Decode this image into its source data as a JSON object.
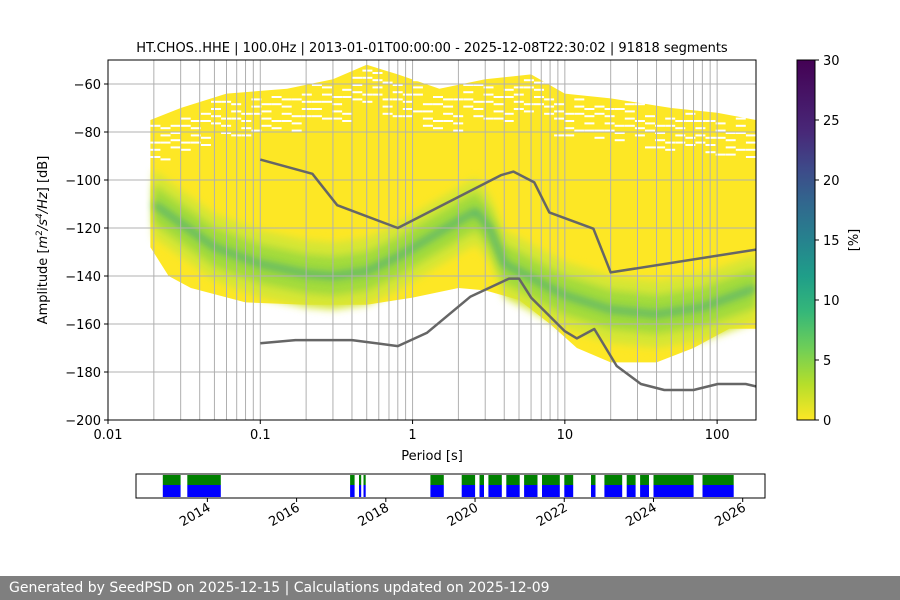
{
  "footer": {
    "text": "Generated by SeedPSD on 2025-12-15 | Calculations updated on 2025-12-09"
  },
  "chart_data": {
    "type": "heatmap",
    "title": "HT.CHOS..HHE | 100.0Hz | 2013-01-01T00:00:00 - 2025-12-08T22:30:02 | 91818 segments",
    "xlabel": "Period [s]",
    "ylabel": "Amplitude [m²/s⁴/Hz] [dB]",
    "xscale": "log",
    "xlim": [
      0.01,
      180
    ],
    "ylim": [
      -200,
      -50
    ],
    "xticks": [
      0.01,
      0.1,
      1,
      10,
      100
    ],
    "xtick_labels": [
      "0.01",
      "0.1",
      "1",
      "10",
      "100"
    ],
    "yticks": [
      -200,
      -180,
      -160,
      -140,
      -120,
      -100,
      -80,
      -60
    ],
    "ytick_labels": [
      "−200",
      "−180",
      "−160",
      "−140",
      "−120",
      "−100",
      "−80",
      "−60"
    ],
    "grid": true,
    "colorbar": {
      "label": "[%]",
      "range": [
        0,
        30
      ],
      "ticks": [
        0,
        5,
        10,
        15,
        20,
        25,
        30
      ],
      "tick_labels": [
        "0",
        "5",
        "10",
        "15",
        "20",
        "25",
        "30"
      ],
      "colormap": "viridis_r"
    },
    "mode_curve": {
      "name": "PSD mode",
      "points": [
        [
          0.02,
          -110
        ],
        [
          0.05,
          -128
        ],
        [
          0.1,
          -135
        ],
        [
          0.2,
          -139
        ],
        [
          0.3,
          -140
        ],
        [
          0.5,
          -138
        ],
        [
          0.8,
          -132
        ],
        [
          1.3,
          -124
        ],
        [
          2.0,
          -117
        ],
        [
          2.6,
          -113
        ],
        [
          3.2,
          -120
        ],
        [
          4.0,
          -135
        ],
        [
          5.0,
          -138
        ],
        [
          7.0,
          -143
        ],
        [
          10.0,
          -148
        ],
        [
          20.0,
          -154
        ],
        [
          40.0,
          -156
        ],
        [
          80.0,
          -153
        ],
        [
          180.0,
          -145
        ]
      ]
    },
    "series": [
      {
        "name": "New High Noise Model",
        "color": "#666666",
        "points": [
          [
            0.1,
            -91.5
          ],
          [
            0.22,
            -97.4
          ],
          [
            0.32,
            -110.5
          ],
          [
            0.8,
            -120.0
          ],
          [
            3.8,
            -98.0
          ],
          [
            4.6,
            -96.5
          ],
          [
            6.3,
            -101.0
          ],
          [
            7.9,
            -113.5
          ],
          [
            15.4,
            -120.3
          ],
          [
            20.0,
            -138.5
          ],
          [
            180.0,
            -129.0
          ]
        ]
      },
      {
        "name": "New Low Noise Model",
        "color": "#666666",
        "points": [
          [
            0.1,
            -168.0
          ],
          [
            0.17,
            -166.7
          ],
          [
            0.4,
            -166.7
          ],
          [
            0.8,
            -169.2
          ],
          [
            1.24,
            -163.7
          ],
          [
            2.4,
            -148.6
          ],
          [
            4.3,
            -141.1
          ],
          [
            5.0,
            -141.1
          ],
          [
            6.0,
            -149.0
          ],
          [
            10.0,
            -163.0
          ],
          [
            12.0,
            -166.0
          ],
          [
            15.6,
            -162.1
          ],
          [
            21.9,
            -177.5
          ],
          [
            31.6,
            -185.0
          ],
          [
            45.0,
            -187.5
          ],
          [
            70.0,
            -187.5
          ],
          [
            101.0,
            -185.0
          ],
          [
            154.0,
            -185.0
          ],
          [
            180.0,
            -186.0
          ]
        ]
      }
    ],
    "availability": {
      "xticks": [
        2014,
        2016,
        2018,
        2020,
        2022,
        2024,
        2026
      ],
      "xtick_labels": [
        "2014",
        "2016",
        "2018",
        "2020",
        "2022",
        "2024",
        "2026"
      ],
      "xlim": [
        2012.4,
        2026.5
      ],
      "intervals": [
        [
          2013.0,
          2013.4
        ],
        [
          2013.55,
          2014.3
        ],
        [
          2017.2,
          2017.3
        ],
        [
          2017.4,
          2017.45
        ],
        [
          2017.5,
          2017.55
        ],
        [
          2019.0,
          2019.3
        ],
        [
          2019.7,
          2020.0
        ],
        [
          2020.1,
          2020.2
        ],
        [
          2020.3,
          2020.6
        ],
        [
          2020.7,
          2021.0
        ],
        [
          2021.1,
          2021.4
        ],
        [
          2021.5,
          2021.9
        ],
        [
          2022.0,
          2022.2
        ],
        [
          2022.6,
          2022.7
        ],
        [
          2022.9,
          2023.3
        ],
        [
          2023.4,
          2023.6
        ],
        [
          2023.7,
          2023.9
        ],
        [
          2024.0,
          2024.9
        ],
        [
          2025.1,
          2025.8
        ]
      ],
      "colors": {
        "top": "#008000",
        "bottom": "#0000ff"
      }
    }
  }
}
